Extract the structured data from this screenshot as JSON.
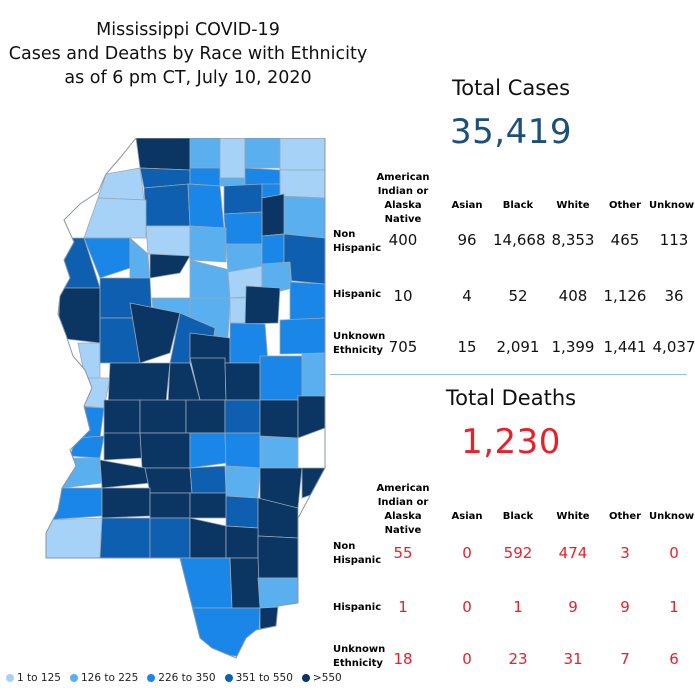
{
  "title": {
    "line1": "Mississippi COVID-19",
    "line2": "Cases and Deaths by Race with Ethnicity",
    "line3": "as of 6 pm CT, July 10, 2020"
  },
  "legend": [
    {
      "label": "1 to 125",
      "color": "#a6d2f7"
    },
    {
      "label": "126 to 225",
      "color": "#5aafef"
    },
    {
      "label": "226 to 350",
      "color": "#1a86e8"
    },
    {
      "label": "351 to 550",
      "color": "#0f5fb0"
    },
    {
      "label": ">550",
      "color": "#0b3563"
    }
  ],
  "colors": {
    "cases": "#1b4f7e",
    "deaths": "#e8202a",
    "divider": "#8fc1ea"
  },
  "columns": [
    "American Indian or Alaska Native",
    "Asian",
    "Black",
    "White",
    "Other",
    "Unknown"
  ],
  "rows": [
    "Non Hispanic",
    "Hispanic",
    "Unknown Ethnicity"
  ],
  "cases": {
    "heading": "Total Cases",
    "total": "35,419",
    "values": [
      [
        "400",
        "96",
        "14,668",
        "8,353",
        "465",
        "113"
      ],
      [
        "10",
        "4",
        "52",
        "408",
        "1,126",
        "36"
      ],
      [
        "705",
        "15",
        "2,091",
        "1,399",
        "1,441",
        "4,037"
      ]
    ]
  },
  "deaths": {
    "heading": "Total Deaths",
    "total": "1,230",
    "values": [
      [
        "55",
        "0",
        "592",
        "474",
        "3",
        "0"
      ],
      [
        "1",
        "0",
        "1",
        "9",
        "9",
        "1"
      ],
      [
        "18",
        "0",
        "23",
        "31",
        "7",
        "6"
      ]
    ]
  }
}
